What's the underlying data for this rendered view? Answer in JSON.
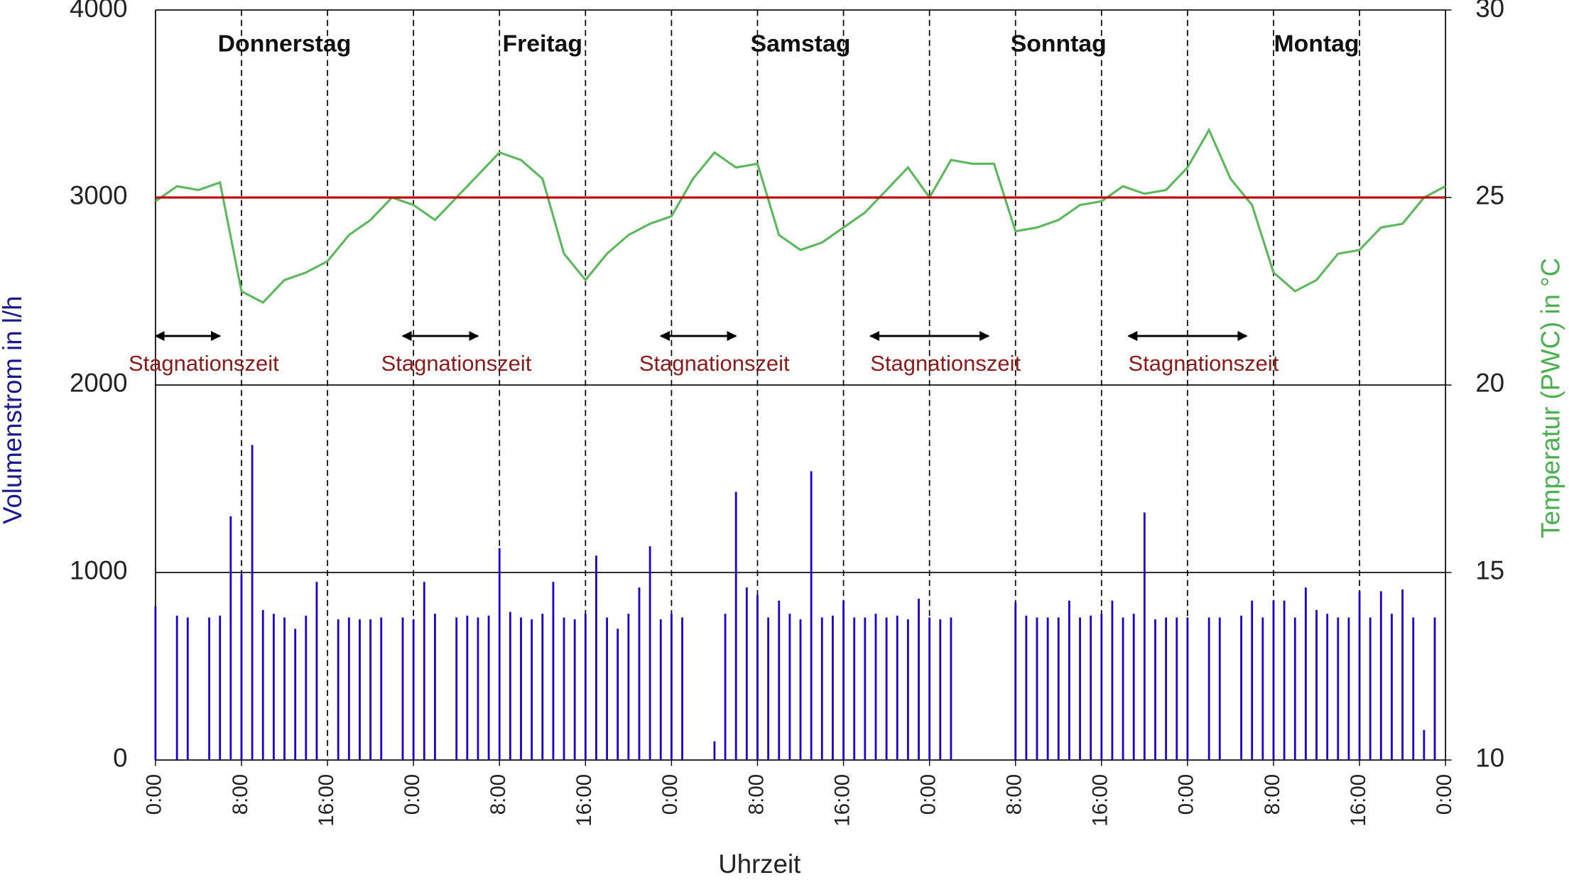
{
  "chart_data": {
    "type": "bar-line",
    "xlabel": "Uhrzeit",
    "ylabel": "Volumenstrom  in l/h",
    "y2label": "Temperatur (PWC)  in °C",
    "xlim": [
      0,
      120
    ],
    "xticks": [
      {
        "value": 0,
        "label": "0:00"
      },
      {
        "value": 8,
        "label": "8:00"
      },
      {
        "value": 16,
        "label": "16:00"
      },
      {
        "value": 24,
        "label": "0:00"
      },
      {
        "value": 32,
        "label": "8:00"
      },
      {
        "value": 40,
        "label": "16:00"
      },
      {
        "value": 48,
        "label": "0:00"
      },
      {
        "value": 56,
        "label": "8:00"
      },
      {
        "value": 64,
        "label": "16:00"
      },
      {
        "value": 72,
        "label": "0:00"
      },
      {
        "value": 80,
        "label": "8:00"
      },
      {
        "value": 88,
        "label": "16:00"
      },
      {
        "value": 96,
        "label": "0:00"
      },
      {
        "value": 104,
        "label": "8:00"
      },
      {
        "value": 112,
        "label": "16:00"
      },
      {
        "value": 120,
        "label": "0:00"
      }
    ],
    "ylim": [
      0,
      4000
    ],
    "yticks": [
      0,
      1000,
      2000,
      3000,
      4000
    ],
    "y2lim": [
      10,
      30
    ],
    "y2ticks": [
      10,
      15,
      20,
      25,
      30
    ],
    "grid": true,
    "days": [
      "Donnerstag",
      "Freitag",
      "Samstag",
      "Sonntag",
      "Montag"
    ],
    "stagnation": {
      "label": "Stagnationszeit",
      "intervals": [
        [
          0,
          6
        ],
        [
          23,
          30
        ],
        [
          47,
          54
        ],
        [
          66.5,
          77.5
        ],
        [
          90.5,
          101.5
        ]
      ]
    },
    "series": [
      {
        "kind": "bar",
        "color": "#2200cc",
        "axis": "y",
        "x": [
          0,
          1,
          2,
          3,
          4,
          5,
          6,
          7,
          8,
          9,
          10,
          11,
          12,
          13,
          14,
          15,
          16,
          17,
          18,
          19,
          20,
          21,
          22,
          23,
          24,
          25,
          26,
          27,
          28,
          29,
          30,
          31,
          32,
          33,
          34,
          35,
          36,
          37,
          38,
          39,
          40,
          41,
          42,
          43,
          44,
          45,
          46,
          47,
          48,
          49,
          50,
          51,
          52,
          53,
          54,
          55,
          56,
          57,
          58,
          59,
          60,
          61,
          62,
          63,
          64,
          65,
          66,
          67,
          68,
          69,
          70,
          71,
          72,
          73,
          74,
          75,
          76,
          77,
          78,
          79,
          80,
          81,
          82,
          83,
          84,
          85,
          86,
          87,
          88,
          89,
          90,
          91,
          92,
          93,
          94,
          95,
          96,
          97,
          98,
          99,
          100,
          101,
          102,
          103,
          104,
          105,
          106,
          107,
          108,
          109,
          110,
          111,
          112,
          113,
          114,
          115,
          116,
          117,
          118,
          119
        ],
        "values": [
          820,
          0,
          770,
          760,
          0,
          760,
          770,
          1300,
          990,
          1680,
          800,
          780,
          760,
          700,
          770,
          950,
          0,
          750,
          760,
          750,
          750,
          760,
          0,
          760,
          750,
          950,
          780,
          0,
          760,
          770,
          760,
          770,
          1130,
          790,
          760,
          750,
          780,
          950,
          760,
          750,
          780,
          1090,
          760,
          700,
          780,
          920,
          1140,
          750,
          780,
          760,
          0,
          0,
          100,
          780,
          1430,
          920,
          880,
          760,
          850,
          780,
          750,
          1540,
          760,
          770,
          850,
          760,
          760,
          780,
          760,
          770,
          750,
          860,
          760,
          750,
          760,
          0,
          0,
          0,
          0,
          0,
          840,
          770,
          760,
          760,
          760,
          850,
          760,
          770,
          780,
          850,
          760,
          780,
          1320,
          750,
          760,
          760,
          760,
          0,
          760,
          760,
          0,
          770,
          850,
          760,
          850,
          850,
          760,
          920,
          800,
          780,
          760,
          760,
          900,
          760,
          900,
          780,
          910,
          760,
          160,
          760
        ]
      },
      {
        "kind": "line",
        "color": "#5cb85c",
        "axis": "y2",
        "x": [
          0,
          2,
          4,
          6,
          8,
          10,
          12,
          14,
          16,
          18,
          20,
          22,
          24,
          26,
          28,
          30,
          32,
          34,
          36,
          38,
          40,
          42,
          44,
          46,
          48,
          50,
          52,
          54,
          56,
          58,
          60,
          62,
          64,
          66,
          68,
          70,
          72,
          74,
          76,
          78,
          80,
          82,
          84,
          86,
          88,
          90,
          92,
          94,
          96,
          98,
          100,
          102,
          104,
          106,
          108,
          110,
          112,
          114,
          116,
          118,
          120
        ],
        "values": [
          24.9,
          25.3,
          25.2,
          25.4,
          22.5,
          22.2,
          22.8,
          23,
          23.3,
          24,
          24.4,
          25,
          24.8,
          24.4,
          25,
          25.6,
          26.2,
          26,
          25.5,
          23.5,
          22.8,
          23.5,
          24,
          24.3,
          24.5,
          25.5,
          26.2,
          25.8,
          25.9,
          24,
          23.6,
          23.8,
          24.2,
          24.6,
          25.2,
          25.8,
          25,
          26,
          25.9,
          25.9,
          24.1,
          24.2,
          24.4,
          24.8,
          24.9,
          25.3,
          25.1,
          25.2,
          25.8,
          26.8,
          25.5,
          24.8,
          23,
          22.5,
          22.8,
          23.5,
          23.6,
          24.2,
          24.3,
          25,
          25.3
        ]
      },
      {
        "kind": "line",
        "color": "#c00000",
        "axis": "y2",
        "x": [
          0,
          120
        ],
        "values": [
          25,
          25
        ]
      }
    ]
  }
}
